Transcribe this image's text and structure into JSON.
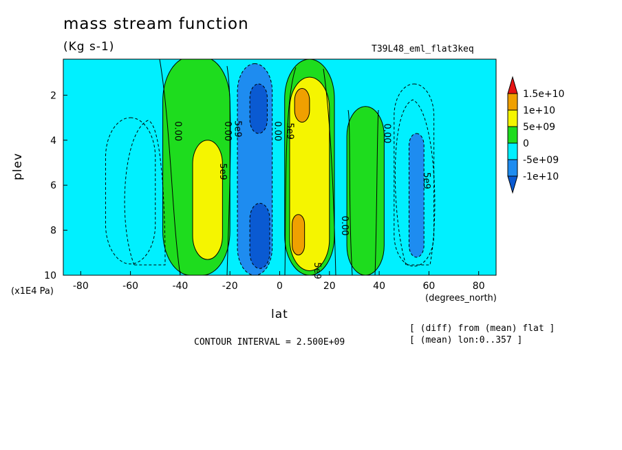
{
  "title": "mass stream function",
  "units": "(Kg s-1)",
  "experiment": "T39L48_eml_flat3keq",
  "contour_interval": "CONTOUR INTERVAL = 2.500E+09",
  "notes": [
    "[ (diff) from (mean) flat ]",
    "[ (mean) lon:0..357 ]"
  ],
  "colors": {
    "neg10": "#1e8cf0",
    "neg5": "#0a5ad2",
    "neg0": "#00f0ff",
    "pos0": "#1edc1e",
    "pos5": "#f5f500",
    "pos10": "#f0a000",
    "pos15": "#e61414"
  },
  "chart_data": {
    "type": "contour",
    "xlabel": "lat",
    "x_units": "(degrees_north)",
    "ylabel": "plev",
    "y_units": "(x1E4 Pa)",
    "xlim": [
      -90,
      90
    ],
    "ylim": [
      10,
      0
    ],
    "x_ticks": [
      -80,
      -60,
      -40,
      -20,
      0,
      20,
      40,
      60,
      80
    ],
    "y_ticks": [
      2,
      4,
      6,
      8,
      10
    ],
    "contour_labels": [
      "0.00",
      "0.00",
      "5e9",
      "0.00",
      "5e9",
      "5e9",
      "5e9",
      "0.00",
      "0.00",
      "5e9"
    ],
    "legend": {
      "labels": [
        "1.5e+10",
        "1e+10",
        "5e+09",
        "0",
        "-5e+09",
        "-1e+10"
      ],
      "colors": [
        "#e61414",
        "#f0a000",
        "#f5f500",
        "#1edc1e",
        "#00f0ff",
        "#1e8cf0",
        "#0a5ad2"
      ]
    },
    "cells": [
      {
        "lat": [
          -70,
          -50
        ],
        "p": [
          3,
          9.5
        ],
        "value": -4
      },
      {
        "lat": [
          -47,
          -20
        ],
        "p": [
          0.3,
          10
        ],
        "value": 3
      },
      {
        "lat": [
          -35,
          -23
        ],
        "p": [
          4,
          9.3
        ],
        "value": 6
      },
      {
        "lat": [
          -17,
          -3
        ],
        "p": [
          0.6,
          10
        ],
        "value": -7
      },
      {
        "lat": [
          -12,
          -5
        ],
        "p": [
          1.5,
          3.7
        ],
        "value": -12
      },
      {
        "lat": [
          -12,
          -4
        ],
        "p": [
          6.8,
          9.7
        ],
        "value": -12
      },
      {
        "lat": [
          2,
          22
        ],
        "p": [
          0.4,
          10
        ],
        "value": 4
      },
      {
        "lat": [
          4,
          20
        ],
        "p": [
          1.2,
          9.8
        ],
        "value": 7
      },
      {
        "lat": [
          6,
          12
        ],
        "p": [
          1.7,
          3.2
        ],
        "value": 12
      },
      {
        "lat": [
          5,
          10
        ],
        "p": [
          7.3,
          9.1
        ],
        "value": 12
      },
      {
        "lat": [
          27,
          42
        ],
        "p": [
          2.5,
          10
        ],
        "value": 3
      },
      {
        "lat": [
          46,
          62
        ],
        "p": [
          1.5,
          9.6
        ],
        "value": -3
      },
      {
        "lat": [
          52,
          58
        ],
        "p": [
          3.7,
          9.2
        ],
        "value": -6
      }
    ]
  }
}
